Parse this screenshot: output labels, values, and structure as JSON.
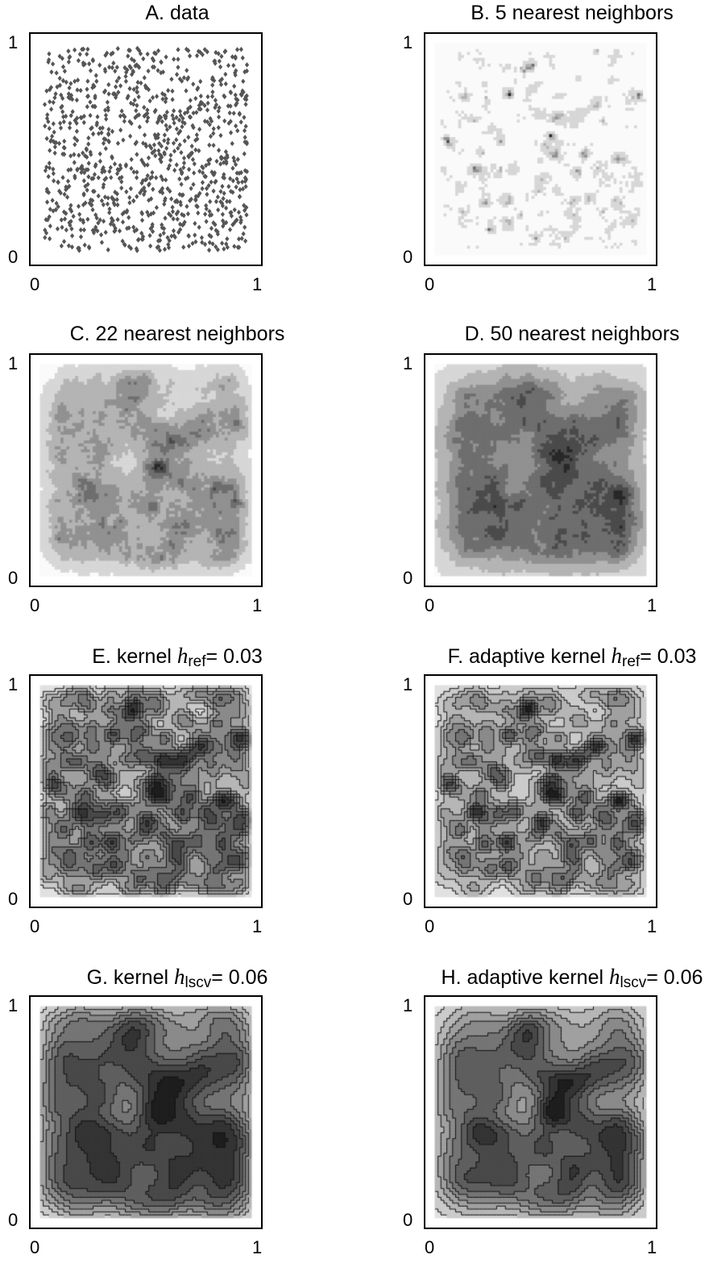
{
  "chart_data": [
    {
      "type": "scatter",
      "panel": "A",
      "title": "A.  data",
      "xlim": [
        0,
        1
      ],
      "ylim": [
        0,
        1
      ],
      "xticks": [
        "0",
        "1"
      ],
      "yticks": [
        "0",
        "1"
      ],
      "n_points": 1000,
      "marker": "diamond",
      "color": "#555555"
    },
    {
      "type": "heatmap",
      "panel": "B",
      "title": "B.  5 nearest neighbors",
      "neighbors": 5,
      "xlim": [
        0,
        1
      ],
      "ylim": [
        0,
        1
      ],
      "xticks": [
        "0",
        "1"
      ],
      "yticks": [
        "0",
        "1"
      ],
      "colormap": "grayscale"
    },
    {
      "type": "heatmap",
      "panel": "C",
      "title": "C.  22 nearest neighbors",
      "neighbors": 22,
      "xlim": [
        0,
        1
      ],
      "ylim": [
        0,
        1
      ],
      "xticks": [
        "0",
        "1"
      ],
      "yticks": [
        "0",
        "1"
      ],
      "colormap": "grayscale"
    },
    {
      "type": "heatmap",
      "panel": "D",
      "title": "D.  50 nearest neighbors",
      "neighbors": 50,
      "xlim": [
        0,
        1
      ],
      "ylim": [
        0,
        1
      ],
      "xticks": [
        "0",
        "1"
      ],
      "yticks": [
        "0",
        "1"
      ],
      "colormap": "grayscale"
    },
    {
      "type": "heatmap",
      "panel": "E",
      "title_prefix": "E.  kernel ",
      "h_symbol": "h",
      "h_subscript": "ref",
      "h_value": "= 0.03",
      "bandwidth": 0.03,
      "adaptive": false,
      "xlim": [
        0,
        1
      ],
      "ylim": [
        0,
        1
      ],
      "xticks": [
        "0",
        "1"
      ],
      "yticks": [
        "0",
        "1"
      ],
      "style": "filled-contour"
    },
    {
      "type": "heatmap",
      "panel": "F",
      "title_prefix": "F.  adaptive kernel ",
      "h_symbol": "h",
      "h_subscript": "ref",
      "h_value": "= 0.03",
      "bandwidth": 0.03,
      "adaptive": true,
      "xlim": [
        0,
        1
      ],
      "ylim": [
        0,
        1
      ],
      "xticks": [
        "0",
        "1"
      ],
      "yticks": [
        "0",
        "1"
      ],
      "style": "filled-contour"
    },
    {
      "type": "heatmap",
      "panel": "G",
      "title_prefix": "G.  kernel ",
      "h_symbol": "h",
      "h_subscript": "lscv",
      "h_value": "= 0.06",
      "bandwidth": 0.06,
      "adaptive": false,
      "xlim": [
        0,
        1
      ],
      "ylim": [
        0,
        1
      ],
      "xticks": [
        "0",
        "1"
      ],
      "yticks": [
        "0",
        "1"
      ],
      "style": "filled-contour"
    },
    {
      "type": "heatmap",
      "panel": "H",
      "title_prefix": "H.  adaptive kernel ",
      "h_symbol": "h",
      "h_subscript": "lscv",
      "h_value": "= 0.06",
      "bandwidth": 0.06,
      "adaptive": true,
      "xlim": [
        0,
        1
      ],
      "ylim": [
        0,
        1
      ],
      "xticks": [
        "0",
        "1"
      ],
      "yticks": [
        "0",
        "1"
      ],
      "style": "filled-contour"
    }
  ]
}
